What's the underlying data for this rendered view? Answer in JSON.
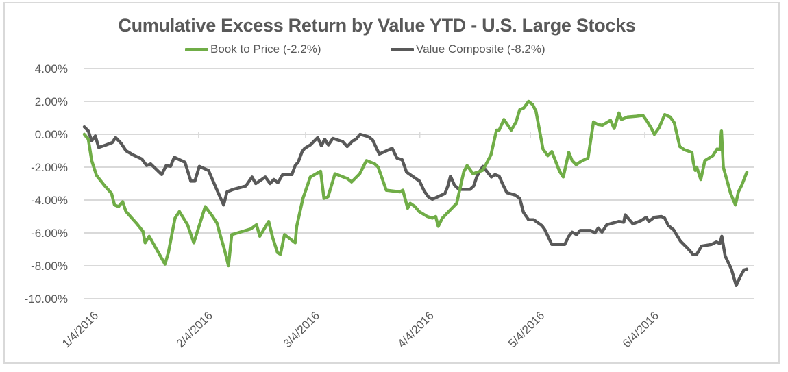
{
  "chart_data": {
    "type": "line",
    "title": "Cumulative Excess Return by Value YTD - U.S. Large Stocks",
    "xlabel": "",
    "ylabel": "",
    "ylim": [
      -10,
      4
    ],
    "yticks": [
      4,
      2,
      0,
      -2,
      -4,
      -6,
      -8,
      -10
    ],
    "ytick_labels": [
      "4.00%",
      "2.00%",
      "0.00%",
      "-2.00%",
      "-4.00%",
      "-6.00%",
      "-8.00%",
      "-10.00%"
    ],
    "xlim_days": [
      0,
      181
    ],
    "xticks_days": [
      0,
      31,
      60,
      91,
      121,
      152
    ],
    "xtick_labels": [
      "1/4/2016",
      "2/4/2016",
      "3/4/2016",
      "4/4/2016",
      "5/4/2016",
      "6/4/2016"
    ],
    "x_unit": "days since 1/4/2016",
    "grid": true,
    "legend_position": "top",
    "series": [
      {
        "name": "Book to Price (-2.2%)",
        "color": "#70ad47",
        "points": [
          [
            0,
            0.0
          ],
          [
            1.1,
            -0.3
          ],
          [
            2,
            -1.6
          ],
          [
            3.3,
            -2.5
          ],
          [
            5.4,
            -3.1
          ],
          [
            7.4,
            -3.6
          ],
          [
            8.2,
            -4.3
          ],
          [
            9.3,
            -4.4
          ],
          [
            10.4,
            -4.1
          ],
          [
            11.3,
            -4.7
          ],
          [
            14.1,
            -5.4
          ],
          [
            15.9,
            -5.9
          ],
          [
            16.5,
            -6.6
          ],
          [
            17.6,
            -6.2
          ],
          [
            21.9,
            -7.9
          ],
          [
            22.8,
            -7.2
          ],
          [
            24.6,
            -5.1
          ],
          [
            25.8,
            -4.7
          ],
          [
            28,
            -5.5
          ],
          [
            29.7,
            -6.6
          ],
          [
            32.8,
            -4.4
          ],
          [
            34.5,
            -4.9
          ],
          [
            36,
            -5.4
          ],
          [
            36.7,
            -6.0
          ],
          [
            38,
            -7.0
          ],
          [
            39.1,
            -8.0
          ],
          [
            40,
            -6.1
          ],
          [
            43,
            -5.9
          ],
          [
            45.2,
            -5.75
          ],
          [
            46.7,
            -5.5
          ],
          [
            47.6,
            -6.2
          ],
          [
            50,
            -5.3
          ],
          [
            51.1,
            -6.3
          ],
          [
            52.4,
            -7.2
          ],
          [
            53.2,
            -7.3
          ],
          [
            54.3,
            -6.1
          ],
          [
            57.2,
            -6.6
          ],
          [
            57.6,
            -5.6
          ],
          [
            59.3,
            -3.9
          ],
          [
            61.3,
            -2.6
          ],
          [
            64.1,
            -2.25
          ],
          [
            65,
            -3.9
          ],
          [
            66.1,
            -3.8
          ],
          [
            68,
            -2.4
          ],
          [
            71.4,
            -2.7
          ],
          [
            72.5,
            -2.9
          ],
          [
            74.7,
            -2.4
          ],
          [
            76.5,
            -1.6
          ],
          [
            78.8,
            -1.8
          ],
          [
            79.7,
            -2.0
          ],
          [
            80.8,
            -2.7
          ],
          [
            81.9,
            -3.4
          ],
          [
            85.6,
            -3.5
          ],
          [
            86.4,
            -3.4
          ],
          [
            87.7,
            -4.5
          ],
          [
            88.4,
            -4.2
          ],
          [
            89.7,
            -4.4
          ],
          [
            90.8,
            -4.7
          ],
          [
            93,
            -5.0
          ],
          [
            94.4,
            -5.1
          ],
          [
            95.3,
            -5.0
          ],
          [
            96,
            -5.6
          ],
          [
            97.1,
            -5.1
          ],
          [
            101,
            -4.2
          ],
          [
            102.9,
            -2.3
          ],
          [
            103.8,
            -1.9
          ],
          [
            105.4,
            -2.4
          ],
          [
            108,
            -2.2
          ],
          [
            109,
            -1.8
          ],
          [
            110.3,
            -1.25
          ],
          [
            111.8,
            0.25
          ],
          [
            112.5,
            0.25
          ],
          [
            113.8,
            0.9
          ],
          [
            115.8,
            0.25
          ],
          [
            117.1,
            0.75
          ],
          [
            118.1,
            1.5
          ],
          [
            119.2,
            1.6
          ],
          [
            120.5,
            2.0
          ],
          [
            121.6,
            1.8
          ],
          [
            122.5,
            1.4
          ],
          [
            124.4,
            -0.9
          ],
          [
            125.7,
            -1.3
          ],
          [
            126.8,
            -1.05
          ],
          [
            128.9,
            -2.25
          ],
          [
            129.9,
            -2.6
          ],
          [
            131.4,
            -1.1
          ],
          [
            132.3,
            -1.6
          ],
          [
            133.4,
            -1.85
          ],
          [
            134.7,
            -1.65
          ],
          [
            136.6,
            -1.45
          ],
          [
            138.1,
            0.75
          ],
          [
            139.2,
            0.6
          ],
          [
            140.5,
            0.55
          ],
          [
            142.7,
            0.85
          ],
          [
            143.7,
            0.35
          ],
          [
            145,
            1.3
          ],
          [
            145.7,
            0.9
          ],
          [
            147.3,
            1.05
          ],
          [
            149.7,
            1.1
          ],
          [
            151.5,
            1.15
          ],
          [
            152.6,
            0.8
          ],
          [
            153.7,
            0.4
          ],
          [
            154.6,
            0.0
          ],
          [
            155.9,
            0.4
          ],
          [
            157.4,
            1.2
          ],
          [
            158.9,
            1.05
          ],
          [
            160,
            0.7
          ],
          [
            161.5,
            -0.75
          ],
          [
            162.8,
            -0.95
          ],
          [
            164.8,
            -1.1
          ],
          [
            165.2,
            -1.75
          ],
          [
            165.7,
            -2.2
          ],
          [
            166.1,
            -2.0
          ],
          [
            166.7,
            -2.4
          ],
          [
            167.2,
            -2.75
          ],
          [
            168.3,
            -1.6
          ],
          [
            170.5,
            -1.3
          ],
          [
            171.6,
            -0.9
          ],
          [
            172.4,
            -0.95
          ],
          [
            172.8,
            0.2
          ],
          [
            173.3,
            -2.0
          ],
          [
            175.3,
            -3.6
          ],
          [
            176.6,
            -4.3
          ],
          [
            177.4,
            -3.5
          ],
          [
            178.3,
            -3.1
          ],
          [
            179.7,
            -2.3
          ]
        ]
      },
      {
        "name": "Value Composite (-8.2%)",
        "color": "#595959",
        "points": [
          [
            0,
            0.45
          ],
          [
            1.1,
            0.2
          ],
          [
            2,
            -0.4
          ],
          [
            3,
            -0.1
          ],
          [
            3.9,
            -0.8
          ],
          [
            5.9,
            -0.65
          ],
          [
            7.6,
            -0.5
          ],
          [
            8.5,
            -0.2
          ],
          [
            10,
            -0.55
          ],
          [
            11.3,
            -1.0
          ],
          [
            13.2,
            -1.25
          ],
          [
            15.6,
            -1.5
          ],
          [
            16.9,
            -1.9
          ],
          [
            18,
            -1.8
          ],
          [
            21,
            -2.45
          ],
          [
            22.2,
            -1.9
          ],
          [
            23.4,
            -1.95
          ],
          [
            24.4,
            -1.4
          ],
          [
            27.3,
            -1.7
          ],
          [
            28.9,
            -2.85
          ],
          [
            30,
            -2.85
          ],
          [
            31.2,
            -1.95
          ],
          [
            33.7,
            -2.2
          ],
          [
            35.6,
            -3.2
          ],
          [
            37.8,
            -4.3
          ],
          [
            38.7,
            -3.5
          ],
          [
            40.4,
            -3.35
          ],
          [
            43.8,
            -3.15
          ],
          [
            45.5,
            -2.6
          ],
          [
            46.5,
            -3.0
          ],
          [
            49.1,
            -2.6
          ],
          [
            50.4,
            -3.0
          ],
          [
            51.4,
            -2.75
          ],
          [
            52.5,
            -2.95
          ],
          [
            53.8,
            -2.45
          ],
          [
            56.3,
            -2.45
          ],
          [
            57.2,
            -1.9
          ],
          [
            58,
            -1.7
          ],
          [
            59.1,
            -1.05
          ],
          [
            59.8,
            -0.85
          ],
          [
            61.3,
            -0.65
          ],
          [
            63.3,
            -0.2
          ],
          [
            64.3,
            -0.7
          ],
          [
            65.2,
            -0.3
          ],
          [
            66.2,
            -0.65
          ],
          [
            67.4,
            -0.25
          ],
          [
            70.1,
            -0.45
          ],
          [
            71.3,
            -0.75
          ],
          [
            72.8,
            -0.4
          ],
          [
            73.7,
            -0.3
          ],
          [
            74.8,
            0.0
          ],
          [
            77.1,
            -0.15
          ],
          [
            78.2,
            -0.35
          ],
          [
            80,
            -1.2
          ],
          [
            83.5,
            -0.85
          ],
          [
            84.8,
            -1.45
          ],
          [
            86.2,
            -1.55
          ],
          [
            87.4,
            -2.3
          ],
          [
            90.9,
            -2.85
          ],
          [
            92.2,
            -3.45
          ],
          [
            93.3,
            -3.8
          ],
          [
            94.4,
            -3.95
          ],
          [
            97.8,
            -3.6
          ],
          [
            98.6,
            -3.15
          ],
          [
            99.3,
            -2.55
          ],
          [
            100.4,
            -3.1
          ],
          [
            101.6,
            -3.35
          ],
          [
            104.6,
            -3.35
          ],
          [
            105.6,
            -3.15
          ],
          [
            106.5,
            -2.55
          ],
          [
            108.1,
            -1.95
          ],
          [
            110.4,
            -2.6
          ],
          [
            111.4,
            -2.45
          ],
          [
            112.5,
            -2.55
          ],
          [
            113.5,
            -3.05
          ],
          [
            114.6,
            -3.55
          ],
          [
            116.9,
            -3.7
          ],
          [
            118.1,
            -3.9
          ],
          [
            119.1,
            -4.75
          ],
          [
            120.5,
            -5.2
          ],
          [
            121.9,
            -5.2
          ],
          [
            124.1,
            -5.55
          ],
          [
            124.9,
            -5.8
          ],
          [
            126.8,
            -6.7
          ],
          [
            130.3,
            -6.7
          ],
          [
            131.4,
            -6.2
          ],
          [
            132.3,
            -5.95
          ],
          [
            133.5,
            -6.1
          ],
          [
            134.5,
            -5.85
          ],
          [
            137.3,
            -5.85
          ],
          [
            138.5,
            -6.0
          ],
          [
            139.4,
            -5.7
          ],
          [
            140.4,
            -5.95
          ],
          [
            141.7,
            -5.5
          ],
          [
            145,
            -5.3
          ],
          [
            146.3,
            -5.35
          ],
          [
            146.7,
            -4.9
          ],
          [
            148.8,
            -5.45
          ],
          [
            151,
            -5.25
          ],
          [
            152.4,
            -5.05
          ],
          [
            153.1,
            -5.3
          ],
          [
            154.6,
            -5.05
          ],
          [
            156.5,
            -5.0
          ],
          [
            157.4,
            -5.1
          ],
          [
            158.4,
            -5.55
          ],
          [
            159.8,
            -5.8
          ],
          [
            161.7,
            -6.5
          ],
          [
            163.5,
            -6.9
          ],
          [
            164.5,
            -7.15
          ],
          [
            165,
            -7.3
          ],
          [
            166.1,
            -7.3
          ],
          [
            167.4,
            -6.8
          ],
          [
            170.1,
            -6.7
          ],
          [
            171.4,
            -6.55
          ],
          [
            172.4,
            -6.65
          ],
          [
            172.9,
            -6.2
          ],
          [
            173.8,
            -7.4
          ],
          [
            175.5,
            -8.2
          ],
          [
            176.8,
            -9.2
          ],
          [
            177.8,
            -8.7
          ],
          [
            178.9,
            -8.25
          ],
          [
            179.7,
            -8.2
          ]
        ]
      }
    ]
  }
}
